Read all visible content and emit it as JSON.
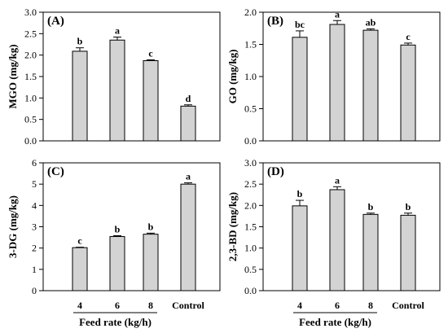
{
  "chart_data": [
    {
      "type": "bar",
      "panel_label": "(A)",
      "ylabel": "MGO (mg/kg)",
      "ylim": [
        0,
        3.0
      ],
      "yticks": [
        "0.0",
        "0.5",
        "1.0",
        "1.5",
        "2.0",
        "2.5",
        "3.0"
      ],
      "categories": [
        "4",
        "6",
        "8",
        "Control"
      ],
      "values": [
        2.09,
        2.35,
        1.87,
        0.81
      ],
      "errors": [
        0.08,
        0.07,
        0.02,
        0.03
      ],
      "significance": [
        "b",
        "a",
        "c",
        "d"
      ],
      "bar_color": "#d3d3d3"
    },
    {
      "type": "bar",
      "panel_label": "(B)",
      "ylabel": "GO (mg/kg)",
      "ylim": [
        0,
        2.0
      ],
      "yticks": [
        "0.0",
        "0.5",
        "1.0",
        "1.5",
        "2.0"
      ],
      "categories": [
        "4",
        "6",
        "8",
        "Control"
      ],
      "values": [
        1.61,
        1.81,
        1.72,
        1.49
      ],
      "errors": [
        0.1,
        0.06,
        0.02,
        0.03
      ],
      "significance": [
        "bc",
        "a",
        "ab",
        "c"
      ],
      "bar_color": "#d3d3d3"
    },
    {
      "type": "bar",
      "panel_label": "(C)",
      "ylabel": "3-DG (mg/kg)",
      "ylim": [
        0,
        6
      ],
      "yticks": [
        "0",
        "1",
        "2",
        "3",
        "4",
        "5",
        "6"
      ],
      "categories": [
        "4",
        "6",
        "8",
        "Control"
      ],
      "values": [
        2.02,
        2.54,
        2.65,
        5.0
      ],
      "errors": [
        0.02,
        0.04,
        0.05,
        0.06
      ],
      "significance": [
        "c",
        "b",
        "b",
        "a"
      ],
      "bar_color": "#d3d3d3"
    },
    {
      "type": "bar",
      "panel_label": "(D)",
      "ylabel": "2,3-BD (mg/kg)",
      "ylim": [
        0,
        3.0
      ],
      "yticks": [
        "0.0",
        "0.5",
        "1.0",
        "1.5",
        "2.0",
        "2.5",
        "3.0"
      ],
      "categories": [
        "4",
        "6",
        "8",
        "Control"
      ],
      "values": [
        1.99,
        2.37,
        1.79,
        1.77
      ],
      "errors": [
        0.13,
        0.07,
        0.03,
        0.05
      ],
      "significance": [
        "b",
        "a",
        "b",
        "b"
      ],
      "bar_color": "#d3d3d3"
    }
  ],
  "x_group_title": "Feed rate (kg/h)"
}
